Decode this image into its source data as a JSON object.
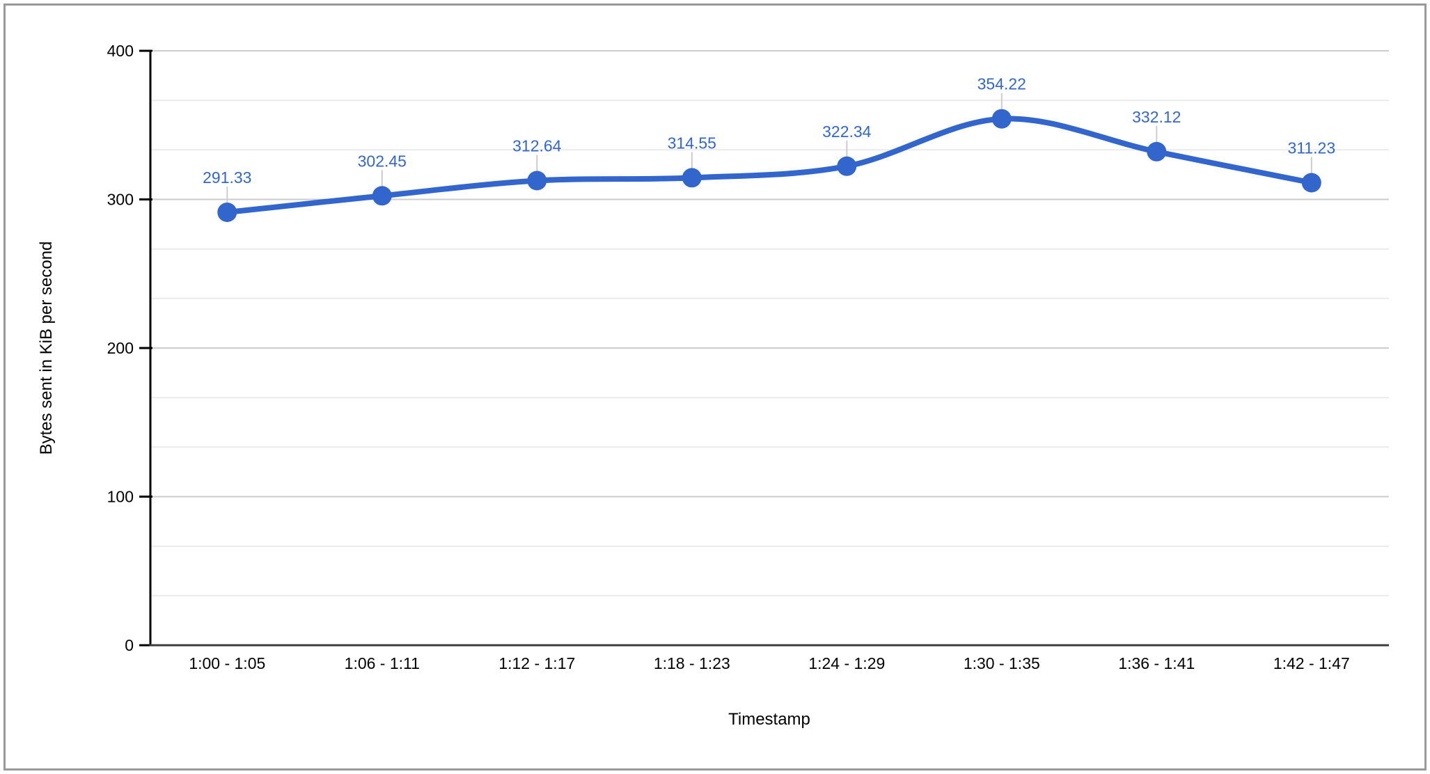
{
  "window": {
    "background": "#ffffff",
    "border_color": "#999999"
  },
  "chart_data": {
    "type": "line",
    "title": "",
    "xlabel": "Timestamp",
    "ylabel": "Bytes sent in KiB per second",
    "categories": [
      "1:00 - 1:05",
      "1:06 - 1:11",
      "1:12 - 1:17",
      "1:18 - 1:23",
      "1:24 - 1:29",
      "1:30 - 1:35",
      "1:36 - 1:41",
      "1:42 - 1:47"
    ],
    "series": [
      {
        "values": [
          291.33,
          302.45,
          312.64,
          314.55,
          322.34,
          354.22,
          332.12,
          311.23
        ],
        "point_labels": [
          "291.33",
          "302.45",
          "312.64",
          "314.55",
          "322.34",
          "354.22",
          "332.12",
          "311.23"
        ]
      }
    ],
    "ylim": [
      0,
      400
    ],
    "yticks": [
      0,
      100,
      200,
      300,
      400
    ],
    "ytick_labels": [
      "0",
      "100",
      "200",
      "300",
      "400"
    ],
    "minor_gridlines_per_interval": 2,
    "grid": "on",
    "legend": "none",
    "smooth": true,
    "colors": {
      "series": "#3366CC",
      "annotation_text": "#3366CC",
      "annotation_stem": "#cccccc",
      "major_gridline": "#cccccc",
      "minor_gridline": "#ebebeb",
      "axis_line": "#000000",
      "baseline": "#3c3c3c",
      "text": "#000000"
    }
  }
}
